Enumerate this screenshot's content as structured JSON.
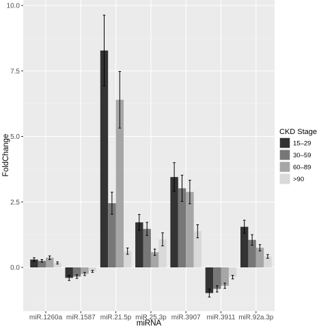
{
  "chart_data": {
    "type": "bar",
    "xlabel": "miRNA",
    "ylabel": "FoldChange",
    "ylim": [
      -1.65,
      10.0
    ],
    "yticks": [
      0.0,
      2.5,
      5.0,
      7.5,
      10.0
    ],
    "ytick_labels": [
      "0.0",
      "2.5",
      "5.0",
      "7.5",
      "10.0"
    ],
    "grid": true,
    "legend_position": "right",
    "legend_title": "CKD Stage",
    "categories": [
      "miR.1260a",
      "miR.1587",
      "miR.21.5p",
      "miR.25.3p",
      "miR.3907",
      "miR.3911",
      "miR.92a.3p"
    ],
    "series": [
      {
        "name": "15–29",
        "color": "#333333",
        "values": [
          0.3,
          -0.4,
          8.28,
          1.72,
          3.45,
          -0.98,
          1.55
        ],
        "errors": [
          0.07,
          0.1,
          1.35,
          0.3,
          0.55,
          0.15,
          0.25
        ]
      },
      {
        "name": "30–59",
        "color": "#777777",
        "values": [
          0.25,
          -0.35,
          2.45,
          1.47,
          3.02,
          -0.82,
          1.05
        ],
        "errors": [
          0.05,
          0.07,
          0.42,
          0.25,
          0.5,
          0.12,
          0.2
        ]
      },
      {
        "name": "60–89",
        "color": "#a6a6a6",
        "values": [
          0.37,
          -0.25,
          6.4,
          0.58,
          2.88,
          -0.7,
          0.75
        ],
        "errors": [
          0.07,
          0.06,
          1.08,
          0.12,
          0.45,
          0.1,
          0.12
        ]
      },
      {
        "name": ">90",
        "color": "#d9d9d9",
        "values": [
          0.17,
          -0.15,
          0.62,
          1.07,
          1.38,
          -0.37,
          0.42
        ],
        "errors": [
          0.04,
          0.04,
          0.12,
          0.25,
          0.25,
          0.07,
          0.07
        ]
      }
    ]
  }
}
